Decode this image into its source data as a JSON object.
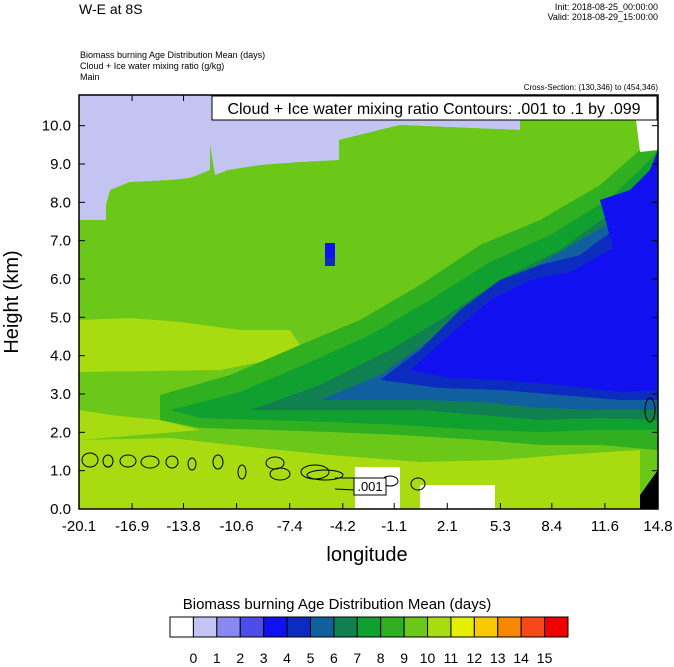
{
  "header": {
    "title": "W-E at 8S",
    "init": "Init: 2018-08-25_00:00:00",
    "valid": "Valid: 2018-08-29_15:00:00",
    "var1": "Biomass burning Age Distribution Mean    (days)",
    "var2": "Cloud + Ice water mixing ratio    (g/kg)",
    "var3": "Main",
    "cross_section": "Cross-Section: (130,346) to (454,346)"
  },
  "chart_data": {
    "type": "heatmap",
    "title": "W-E at 8S",
    "xlabel": "longitude",
    "ylabel": "Height (km)",
    "x_ticks": [
      "-20.1",
      "-16.9",
      "-13.8",
      "-10.6",
      "-7.4",
      "-4.2",
      "-1.1",
      "2.1",
      "5.3",
      "8.4",
      "11.6",
      "14.8"
    ],
    "y_ticks": [
      "0.0",
      "1.0",
      "2.0",
      "3.0",
      "4.0",
      "5.0",
      "6.0",
      "7.0",
      "8.0",
      "9.0",
      "10.0"
    ],
    "xlim": [
      -20.1,
      14.8
    ],
    "ylim": [
      0,
      10.8
    ],
    "contour_info": "Cloud + Ice water mixing ratio Contours: .001 to .1 by .099",
    "contour_label": ".001",
    "colorbar": {
      "title": "Biomass burning Age Distribution Mean  (days)",
      "labels": [
        "0",
        "1",
        "2",
        "3",
        "4",
        "5",
        "6",
        "7",
        "8",
        "9",
        "10",
        "11",
        "12",
        "13",
        "14",
        "15"
      ],
      "colors": [
        "#ffffff",
        "#c4c4f2",
        "#8888f0",
        "#4c4ce8",
        "#1010f0",
        "#0c2cc0",
        "#1060a0",
        "#108050",
        "#10a030",
        "#30b020",
        "#6cc818",
        "#a8dc10",
        "#e4f000",
        "#f8c800",
        "#f88800",
        "#f84818",
        "#f00000"
      ]
    }
  }
}
